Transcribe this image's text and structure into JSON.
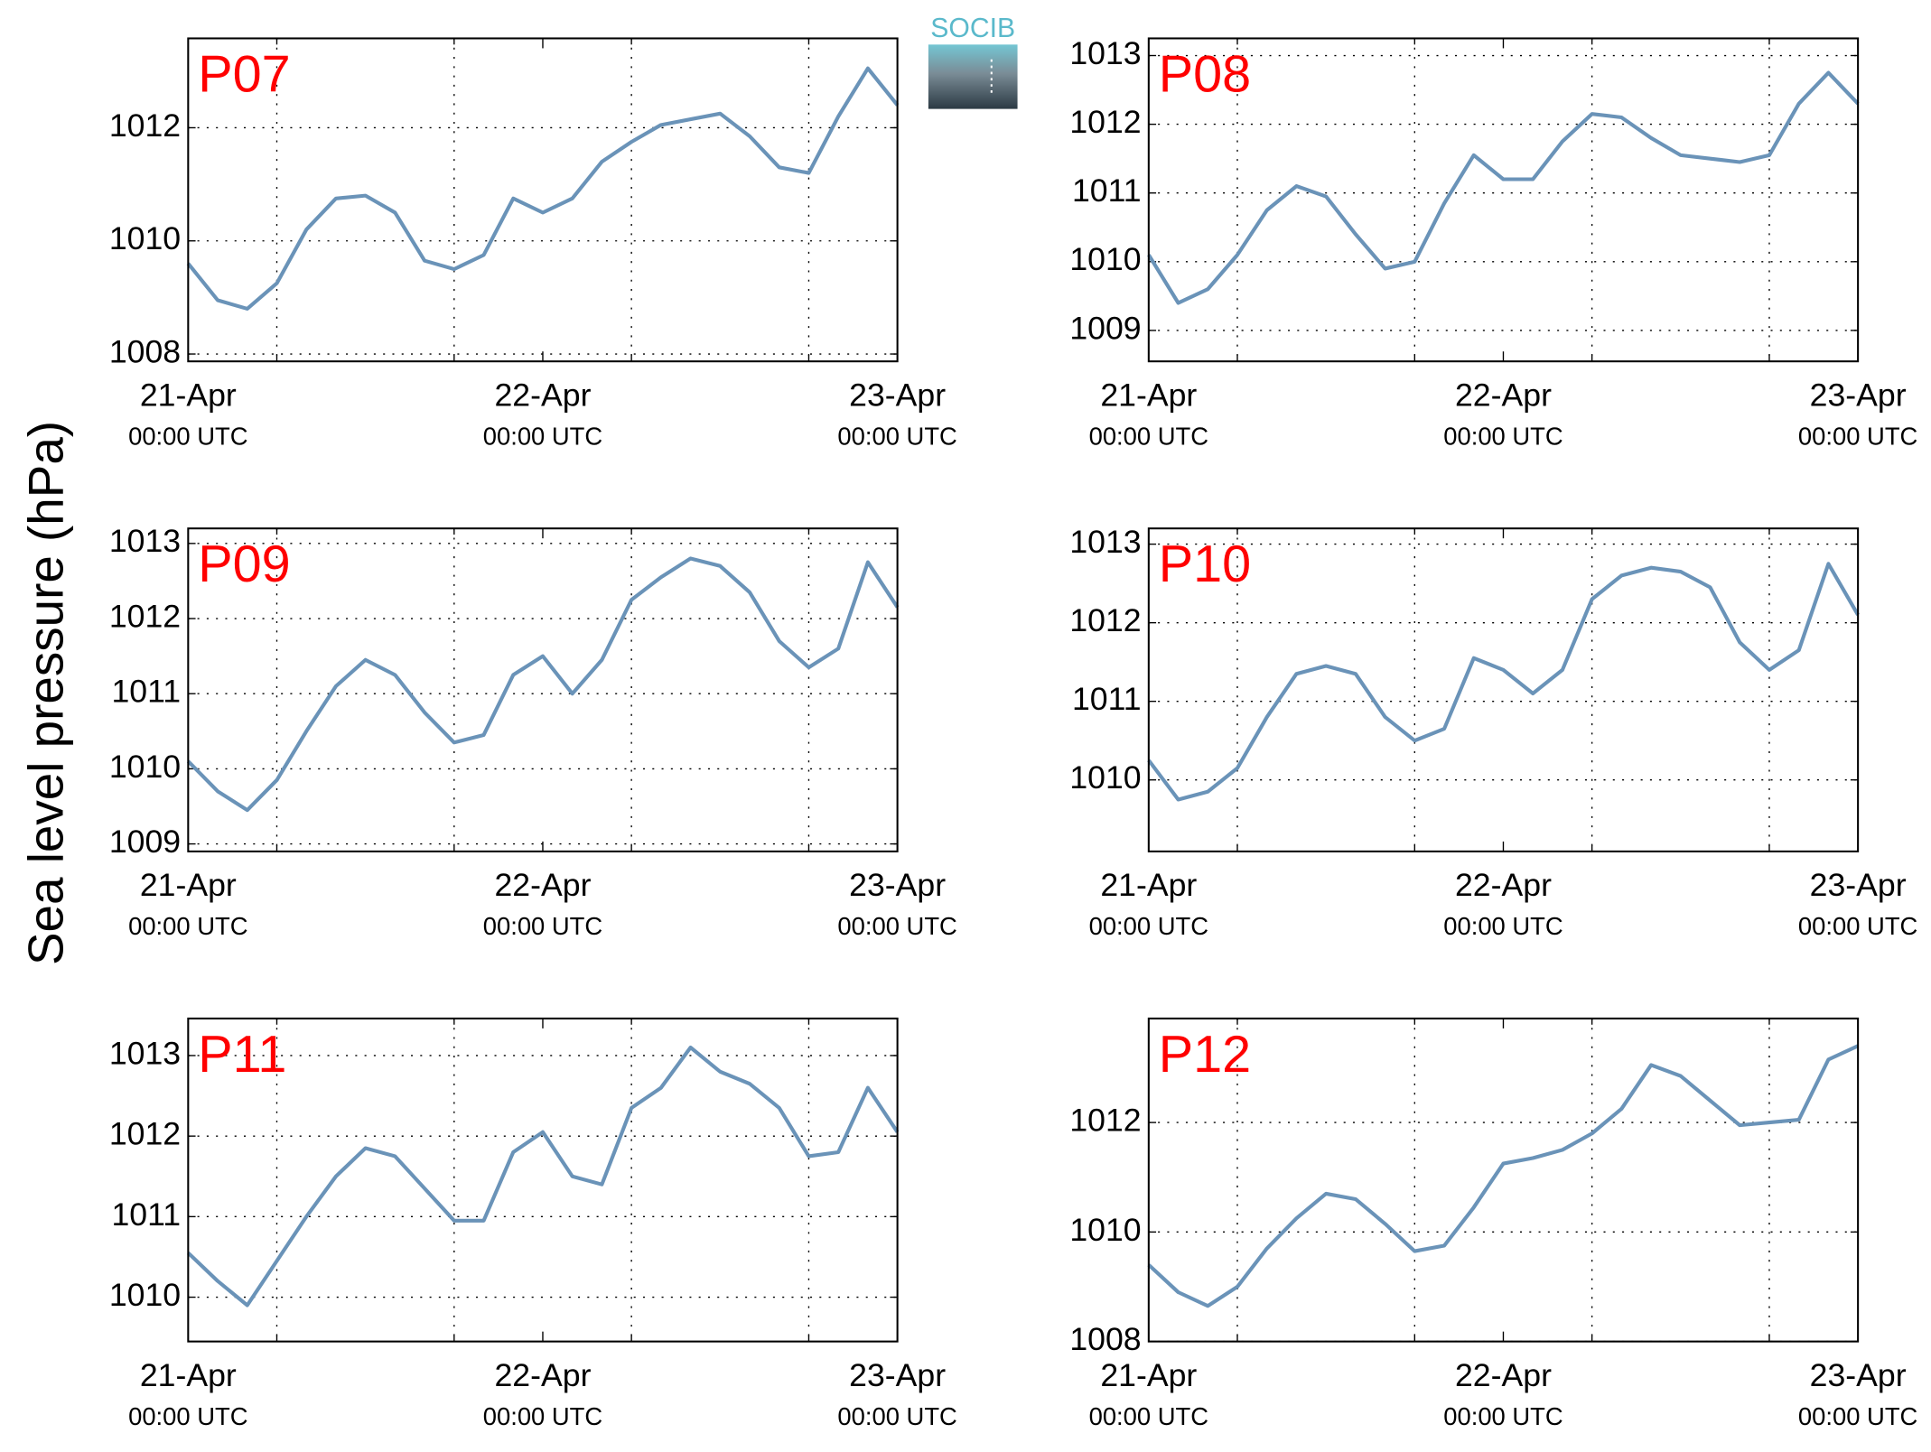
{
  "y_axis_label": "Sea level pressure (hPa)",
  "logo": "SOCIB",
  "chart_data": [
    {
      "type": "line",
      "title": "P07",
      "x": [
        0,
        2,
        4,
        6,
        8,
        10,
        12,
        14,
        16,
        18,
        20,
        22,
        24,
        26,
        28,
        30,
        32,
        34,
        36,
        38,
        40,
        42,
        44,
        46,
        48
      ],
      "values": [
        1009.6,
        1008.95,
        1008.8,
        1009.25,
        1010.2,
        1010.75,
        1010.8,
        1010.5,
        1009.65,
        1009.5,
        1009.75,
        1010.75,
        1010.5,
        1010.75,
        1011.4,
        1011.75,
        1012.05,
        1012.15,
        1012.25,
        1011.85,
        1011.3,
        1011.2,
        1012.2,
        1013.05,
        1012.4
      ],
      "color": "#6a93b8",
      "xlim": [
        0,
        48
      ],
      "xticks": [
        {
          "value": 0,
          "label": "21-Apr",
          "sublabel": "00:00 UTC"
        },
        {
          "value": 24,
          "label": "22-Apr",
          "sublabel": "00:00 UTC"
        },
        {
          "value": 48,
          "label": "23-Apr",
          "sublabel": "00:00 UTC"
        }
      ],
      "xgrid": [
        6,
        18,
        30,
        42
      ],
      "ylim": [
        1007.87,
        1013.58
      ],
      "yticks": [
        1008,
        1010,
        1012
      ],
      "grid": true
    },
    {
      "type": "line",
      "title": "P08",
      "x": [
        0,
        2,
        4,
        6,
        8,
        10,
        12,
        14,
        16,
        18,
        20,
        22,
        24,
        26,
        28,
        30,
        32,
        34,
        36,
        38,
        40,
        42,
        44,
        46,
        48
      ],
      "values": [
        1010.1,
        1009.4,
        1009.6,
        1010.1,
        1010.75,
        1011.1,
        1010.95,
        1010.4,
        1009.9,
        1010.0,
        1010.85,
        1011.55,
        1011.2,
        1011.2,
        1011.75,
        1012.15,
        1012.1,
        1011.8,
        1011.55,
        1011.5,
        1011.45,
        1011.55,
        1012.3,
        1012.75,
        1012.3
      ],
      "color": "#6a93b8",
      "xlim": [
        0,
        48
      ],
      "xticks": [
        {
          "value": 0,
          "label": "21-Apr",
          "sublabel": "00:00 UTC"
        },
        {
          "value": 24,
          "label": "22-Apr",
          "sublabel": "00:00 UTC"
        },
        {
          "value": 48,
          "label": "23-Apr",
          "sublabel": "00:00 UTC"
        }
      ],
      "xgrid": [
        6,
        18,
        30,
        42
      ],
      "ylim": [
        1008.55,
        1013.25
      ],
      "yticks": [
        1009,
        1010,
        1011,
        1012,
        1013
      ],
      "grid": true
    },
    {
      "type": "line",
      "title": "P09",
      "x": [
        0,
        2,
        4,
        6,
        8,
        10,
        12,
        14,
        16,
        18,
        20,
        22,
        24,
        26,
        28,
        30,
        32,
        34,
        36,
        38,
        40,
        42,
        44,
        46,
        48
      ],
      "values": [
        1010.1,
        1009.7,
        1009.45,
        1009.85,
        1010.5,
        1011.1,
        1011.45,
        1011.25,
        1010.75,
        1010.35,
        1010.45,
        1011.25,
        1011.5,
        1011.0,
        1011.45,
        1012.25,
        1012.55,
        1012.8,
        1012.7,
        1012.35,
        1011.7,
        1011.35,
        1011.6,
        1012.75,
        1012.15
      ],
      "color": "#6a93b8",
      "xlim": [
        0,
        48
      ],
      "xticks": [
        {
          "value": 0,
          "label": "21-Apr",
          "sublabel": "00:00 UTC"
        },
        {
          "value": 24,
          "label": "22-Apr",
          "sublabel": "00:00 UTC"
        },
        {
          "value": 48,
          "label": "23-Apr",
          "sublabel": "00:00 UTC"
        }
      ],
      "xgrid": [
        6,
        18,
        30,
        42
      ],
      "ylim": [
        1008.9,
        1013.2
      ],
      "yticks": [
        1009,
        1010,
        1011,
        1012,
        1013
      ],
      "grid": true
    },
    {
      "type": "line",
      "title": "P10",
      "x": [
        0,
        2,
        4,
        6,
        8,
        10,
        12,
        14,
        16,
        18,
        20,
        22,
        24,
        26,
        28,
        30,
        32,
        34,
        36,
        38,
        40,
        42,
        44,
        46,
        48
      ],
      "values": [
        1010.25,
        1009.75,
        1009.85,
        1010.15,
        1010.8,
        1011.35,
        1011.45,
        1011.35,
        1010.8,
        1010.5,
        1010.65,
        1011.55,
        1011.4,
        1011.1,
        1011.4,
        1012.3,
        1012.6,
        1012.7,
        1012.65,
        1012.45,
        1011.75,
        1011.4,
        1011.65,
        1012.75,
        1012.1
      ],
      "color": "#6a93b8",
      "xlim": [
        0,
        48
      ],
      "xticks": [
        {
          "value": 0,
          "label": "21-Apr",
          "sublabel": "00:00 UTC"
        },
        {
          "value": 24,
          "label": "22-Apr",
          "sublabel": "00:00 UTC"
        },
        {
          "value": 48,
          "label": "23-Apr",
          "sublabel": "00:00 UTC"
        }
      ],
      "xgrid": [
        6,
        18,
        30,
        42
      ],
      "ylim": [
        1009.09,
        1013.2
      ],
      "yticks": [
        1010,
        1011,
        1012,
        1013
      ],
      "grid": true
    },
    {
      "type": "line",
      "title": "P11",
      "x": [
        0,
        2,
        4,
        6,
        8,
        10,
        12,
        14,
        16,
        18,
        20,
        22,
        24,
        26,
        28,
        30,
        32,
        34,
        36,
        38,
        40,
        42,
        44,
        46,
        48
      ],
      "values": [
        1010.55,
        1010.2,
        1009.9,
        1010.45,
        1011.0,
        1011.5,
        1011.85,
        1011.75,
        1011.35,
        1010.95,
        1010.95,
        1011.8,
        1012.05,
        1011.5,
        1011.4,
        1012.35,
        1012.6,
        1013.1,
        1012.8,
        1012.65,
        1012.35,
        1011.75,
        1011.8,
        1012.6,
        1012.05
      ],
      "color": "#6a93b8",
      "xlim": [
        0,
        48
      ],
      "xticks": [
        {
          "value": 0,
          "label": "21-Apr",
          "sublabel": "00:00 UTC"
        },
        {
          "value": 24,
          "label": "22-Apr",
          "sublabel": "00:00 UTC"
        },
        {
          "value": 48,
          "label": "23-Apr",
          "sublabel": "00:00 UTC"
        }
      ],
      "xgrid": [
        6,
        18,
        30,
        42
      ],
      "ylim": [
        1009.45,
        1013.46
      ],
      "yticks": [
        1010,
        1011,
        1012,
        1013
      ],
      "grid": true
    },
    {
      "type": "line",
      "title": "P12",
      "x": [
        0,
        2,
        4,
        6,
        8,
        10,
        12,
        14,
        16,
        18,
        20,
        22,
        24,
        26,
        28,
        30,
        32,
        34,
        36,
        38,
        40,
        42,
        44,
        46,
        48
      ],
      "values": [
        1009.4,
        1008.9,
        1008.65,
        1009.0,
        1009.7,
        1010.25,
        1010.7,
        1010.6,
        1010.15,
        1009.65,
        1009.75,
        1010.45,
        1011.25,
        1011.35,
        1011.5,
        1011.8,
        1012.25,
        1013.05,
        1012.85,
        1012.4,
        1011.95,
        1012.0,
        1012.05,
        1013.15,
        1013.4
      ],
      "color": "#6a93b8",
      "xlim": [
        0,
        48
      ],
      "xticks": [
        {
          "value": 0,
          "label": "21-Apr",
          "sublabel": "00:00 UTC"
        },
        {
          "value": 24,
          "label": "22-Apr",
          "sublabel": "00:00 UTC"
        },
        {
          "value": 48,
          "label": "23-Apr",
          "sublabel": "00:00 UTC"
        }
      ],
      "xgrid": [
        6,
        18,
        30,
        42
      ],
      "ylim": [
        1008,
        1013.9
      ],
      "yticks": [
        1008,
        1010,
        1012
      ],
      "grid": true
    }
  ]
}
